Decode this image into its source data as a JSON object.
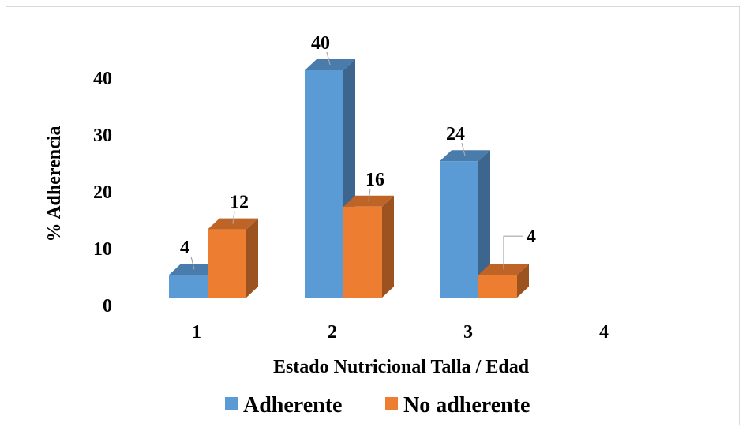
{
  "chart_data": {
    "type": "bar",
    "categories": [
      "1",
      "2",
      "3",
      "4"
    ],
    "series": [
      {
        "name": "Adherente",
        "values": [
          4,
          40,
          24,
          null
        ],
        "color": "#5b9bd5"
      },
      {
        "name": "No adherente",
        "values": [
          12,
          16,
          4,
          null
        ],
        "color": "#ed7d31"
      }
    ],
    "data_labels": [
      [
        "4",
        "40",
        "24",
        ""
      ],
      [
        "12",
        "16",
        "4",
        ""
      ]
    ],
    "y_ticks": [
      "0",
      "10",
      "20",
      "30",
      "40"
    ],
    "xlabel": "Estado Nutricional Talla / Edad",
    "ylabel": "% Adherencia",
    "ylim": [
      0,
      45
    ],
    "legend_position": "bottom",
    "style": "3d-clustered-column",
    "grid": false
  }
}
